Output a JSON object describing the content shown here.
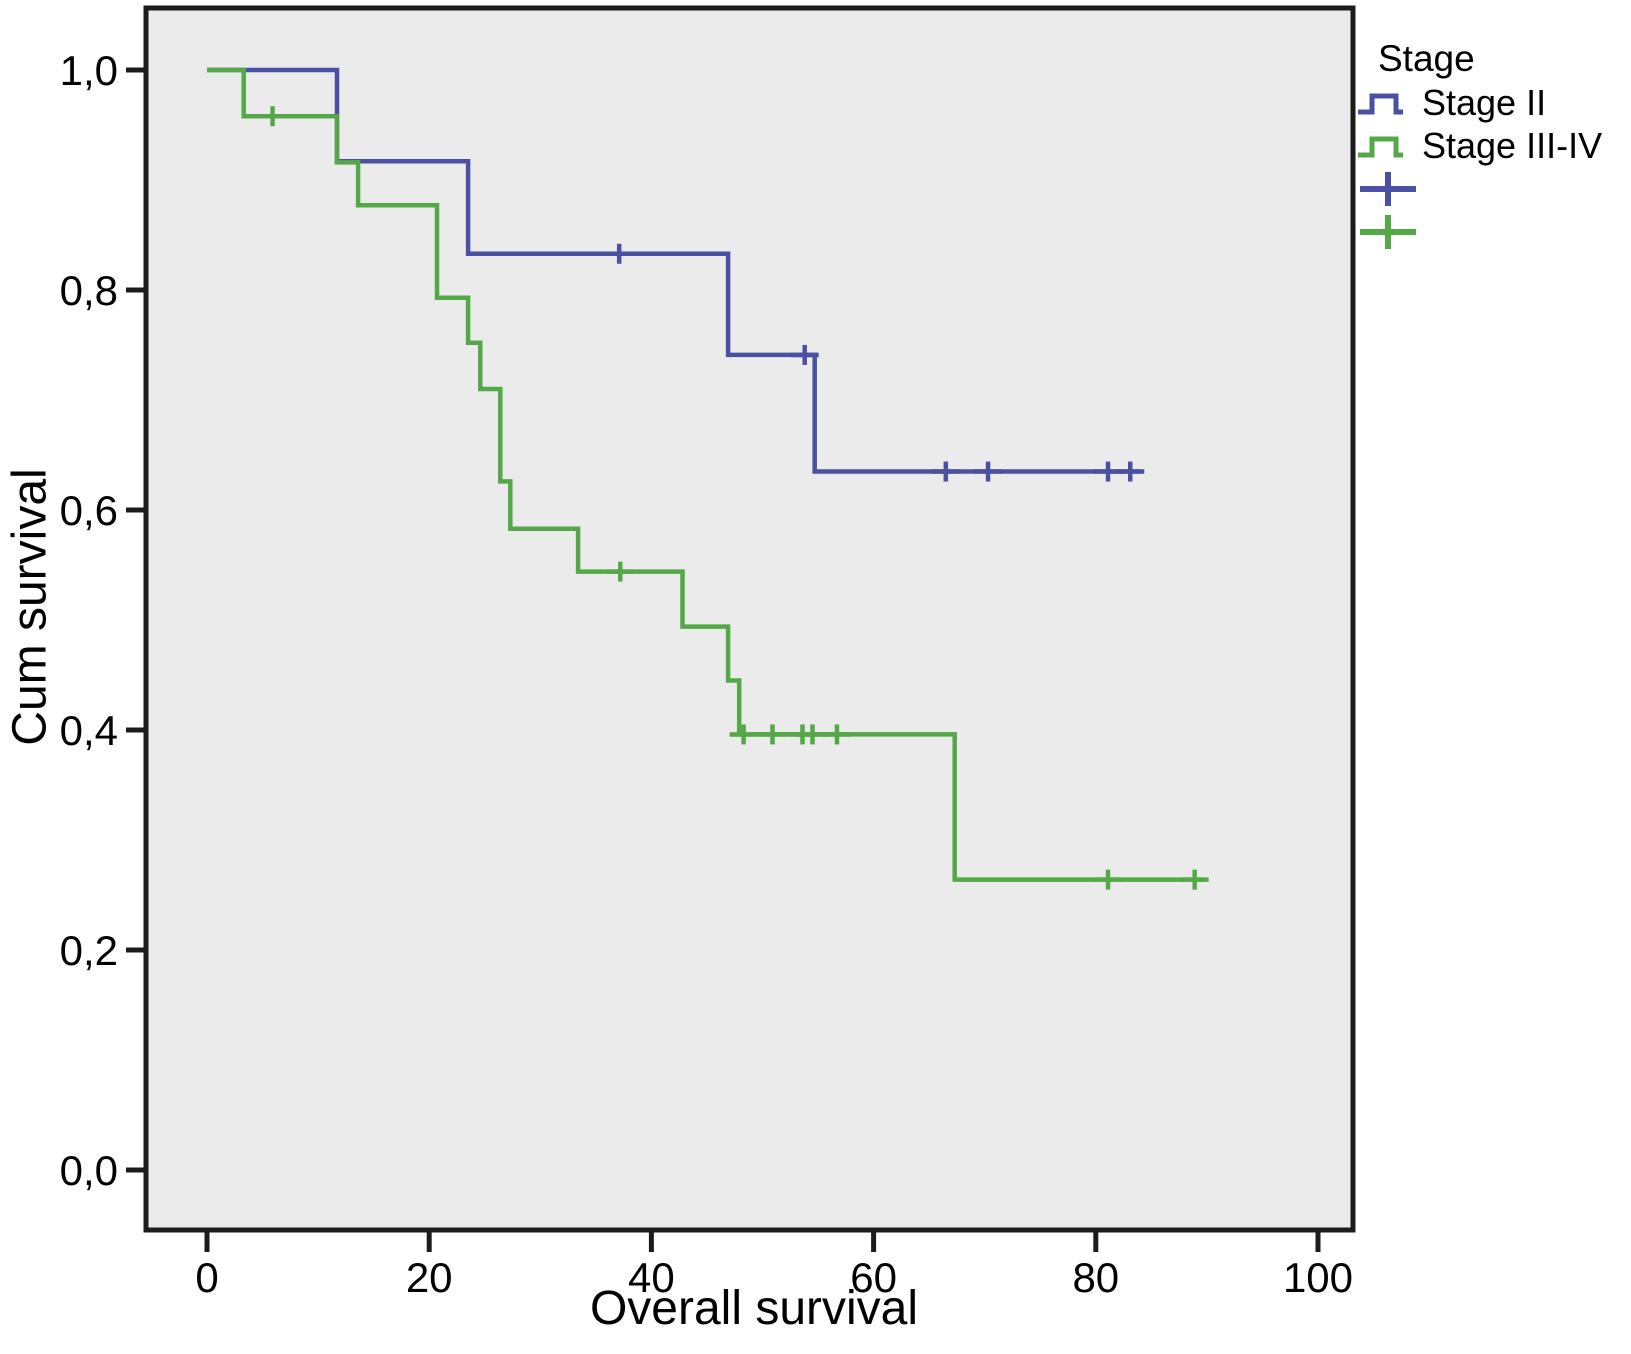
{
  "chart_data": {
    "type": "line",
    "subtype": "kaplan-meier-step-survival",
    "title": "",
    "xlabel": "Overall survival",
    "ylabel": "Cum survival",
    "xlim": [
      -5.49,
      103.15
    ],
    "ylim": [
      -0.0545,
      1.0564
    ],
    "grid": false,
    "plot_bg": "#ebebeb",
    "border_color": "#1c1c1c",
    "tick_color": "#1c1c1c",
    "x_ticks": [
      {
        "v": 0,
        "label": "0"
      },
      {
        "v": 20,
        "label": "20"
      },
      {
        "v": 40,
        "label": "40"
      },
      {
        "v": 60,
        "label": "60"
      },
      {
        "v": 80,
        "label": "80"
      },
      {
        "v": 100,
        "label": "100"
      }
    ],
    "y_ticks": [
      {
        "v": 0.0,
        "label": "0,0"
      },
      {
        "v": 0.2,
        "label": "0,2"
      },
      {
        "v": 0.4,
        "label": "0,4"
      },
      {
        "v": 0.6,
        "label": "0,6"
      },
      {
        "v": 0.8,
        "label": "0,8"
      },
      {
        "v": 1.0,
        "label": "1,0"
      }
    ],
    "series": [
      {
        "name": "Stage II",
        "color": "#4a51a3",
        "steps": [
          [
            0,
            1.0
          ],
          [
            11.7,
            1.0
          ],
          [
            11.7,
            0.917
          ],
          [
            23.5,
            0.917
          ],
          [
            23.5,
            0.833
          ],
          [
            46.9,
            0.833
          ],
          [
            46.9,
            0.741
          ],
          [
            54.7,
            0.741
          ],
          [
            54.7,
            0.635
          ],
          [
            84,
            0.635
          ]
        ],
        "censors": [
          [
            37.1,
            0.833
          ],
          [
            53.8,
            0.741
          ],
          [
            66.5,
            0.635
          ],
          [
            70.3,
            0.635
          ],
          [
            81.1,
            0.635
          ],
          [
            83.1,
            0.635
          ]
        ]
      },
      {
        "name": "Stage III-IV",
        "color": "#54a848",
        "steps": [
          [
            0,
            1.0
          ],
          [
            3.3,
            1.0
          ],
          [
            3.3,
            0.958
          ],
          [
            11.7,
            0.958
          ],
          [
            11.7,
            0.916
          ],
          [
            13.6,
            0.916
          ],
          [
            13.6,
            0.877
          ],
          [
            20.7,
            0.877
          ],
          [
            20.7,
            0.793
          ],
          [
            23.5,
            0.793
          ],
          [
            23.5,
            0.752
          ],
          [
            24.6,
            0.752
          ],
          [
            24.6,
            0.71
          ],
          [
            26.4,
            0.71
          ],
          [
            26.4,
            0.626
          ],
          [
            27.3,
            0.626
          ],
          [
            27.3,
            0.583
          ],
          [
            33.4,
            0.583
          ],
          [
            33.4,
            0.544
          ],
          [
            42.8,
            0.544
          ],
          [
            42.8,
            0.494
          ],
          [
            46.9,
            0.494
          ],
          [
            46.9,
            0.445
          ],
          [
            47.9,
            0.445
          ],
          [
            47.9,
            0.396
          ],
          [
            67.3,
            0.396
          ],
          [
            67.3,
            0.264
          ],
          [
            89.7,
            0.264
          ]
        ],
        "censors": [
          [
            5.9,
            0.958
          ],
          [
            37.2,
            0.544
          ],
          [
            48.3,
            0.396
          ],
          [
            50.9,
            0.396
          ],
          [
            53.6,
            0.396
          ],
          [
            54.5,
            0.396
          ],
          [
            56.7,
            0.396
          ],
          [
            81.1,
            0.264
          ],
          [
            88.9,
            0.264
          ]
        ]
      }
    ],
    "legend": {
      "title": "Stage",
      "position": "top-right-outside",
      "entries": [
        {
          "name": "stage-ii",
          "label": "Stage II",
          "glyph": "step-line",
          "color": "#4a51a3"
        },
        {
          "name": "stage-iii-iv",
          "label": "Stage III-IV",
          "glyph": "step-line",
          "color": "#54a848"
        },
        {
          "name": "stage-ii-censored",
          "label": "",
          "glyph": "plus-mark",
          "color": "#4a51a3"
        },
        {
          "name": "stage-iii-iv-censored",
          "label": "",
          "glyph": "plus-mark",
          "color": "#54a848"
        }
      ]
    }
  }
}
